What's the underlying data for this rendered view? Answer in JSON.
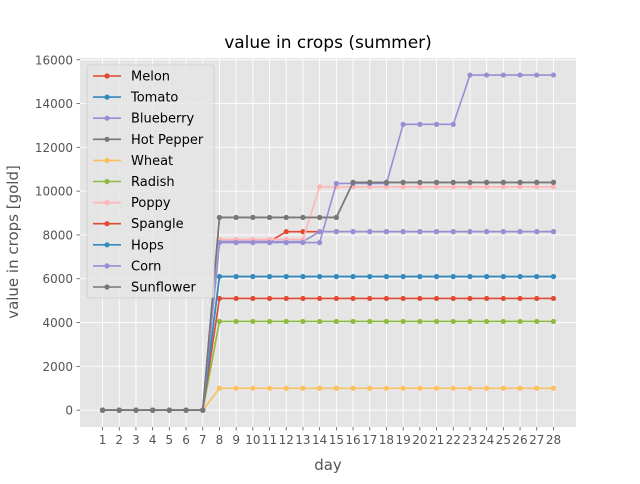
{
  "chart_data": {
    "type": "line",
    "title": "value in crops (summer)",
    "xlabel": "day",
    "ylabel": "value in crops [gold]",
    "x": [
      1,
      2,
      3,
      4,
      5,
      6,
      7,
      8,
      9,
      10,
      11,
      12,
      13,
      14,
      15,
      16,
      17,
      18,
      19,
      20,
      21,
      22,
      23,
      24,
      25,
      26,
      27,
      28
    ],
    "xlim": [
      -0.35,
      29.35
    ],
    "ylim": [
      -770,
      16080
    ],
    "yticks": [
      0,
      2000,
      4000,
      6000,
      8000,
      10000,
      12000,
      14000,
      16000
    ],
    "grid": true,
    "legend_position": "top-left",
    "series": [
      {
        "name": "Melon",
        "color": "#E24A33",
        "values": [
          0,
          0,
          0,
          0,
          0,
          0,
          0,
          7700,
          7700,
          7700,
          7700,
          8150,
          8150,
          8150,
          8150,
          8150,
          8150,
          8150,
          8150,
          8150,
          8150,
          8150,
          8150,
          8150,
          8150,
          8150,
          8150,
          8150
        ]
      },
      {
        "name": "Tomato",
        "color": "#348ABD",
        "values": [
          0,
          0,
          0,
          0,
          0,
          0,
          0,
          6100,
          6100,
          6100,
          6100,
          6100,
          6100,
          6100,
          6100,
          6100,
          6100,
          6100,
          6100,
          6100,
          6100,
          6100,
          6100,
          6100,
          6100,
          6100,
          6100,
          6100
        ]
      },
      {
        "name": "Blueberry",
        "color": "#988ED5",
        "values": [
          0,
          0,
          0,
          0,
          0,
          0,
          0,
          7700,
          7700,
          7700,
          7700,
          7700,
          7700,
          8150,
          8150,
          8150,
          8150,
          8150,
          8150,
          8150,
          8150,
          8150,
          8150,
          8150,
          8150,
          8150,
          8150,
          8150
        ]
      },
      {
        "name": "Hot Pepper",
        "color": "#777777",
        "values": [
          0,
          0,
          0,
          0,
          0,
          0,
          0,
          8800,
          8800,
          8800,
          8800,
          8800,
          8800,
          8800,
          8800,
          10400,
          10400,
          10400,
          10400,
          10400,
          10400,
          10400,
          10400,
          10400,
          10400,
          10400,
          10400,
          10400
        ]
      },
      {
        "name": "Wheat",
        "color": "#FBC15E",
        "values": [
          0,
          0,
          0,
          0,
          0,
          0,
          0,
          1000,
          1000,
          1000,
          1000,
          1000,
          1000,
          1000,
          1000,
          1000,
          1000,
          1000,
          1000,
          1000,
          1000,
          1000,
          1000,
          1000,
          1000,
          1000,
          1000,
          1000
        ]
      },
      {
        "name": "Radish",
        "color": "#8EBA42",
        "values": [
          0,
          0,
          0,
          0,
          0,
          0,
          0,
          4050,
          4050,
          4050,
          4050,
          4050,
          4050,
          4050,
          4050,
          4050,
          4050,
          4050,
          4050,
          4050,
          4050,
          4050,
          4050,
          4050,
          4050,
          4050,
          4050,
          4050
        ]
      },
      {
        "name": "Poppy",
        "color": "#FFB5B8",
        "values": [
          0,
          0,
          0,
          0,
          0,
          0,
          0,
          7800,
          7800,
          7800,
          7800,
          7800,
          7800,
          10200,
          10200,
          10200,
          10200,
          10200,
          10200,
          10200,
          10200,
          10200,
          10200,
          10200,
          10200,
          10200,
          10200,
          10200
        ]
      },
      {
        "name": "Spangle",
        "color": "#E24A33",
        "values": [
          0,
          0,
          0,
          0,
          0,
          0,
          0,
          5100,
          5100,
          5100,
          5100,
          5100,
          5100,
          5100,
          5100,
          5100,
          5100,
          5100,
          5100,
          5100,
          5100,
          5100,
          5100,
          5100,
          5100,
          5100,
          5100,
          5100
        ]
      },
      {
        "name": "Hops",
        "color": "#348ABD",
        "values": [
          0,
          0,
          0,
          0,
          0,
          0,
          0,
          6100,
          6100,
          6100,
          6100,
          6100,
          6100,
          6100,
          6100,
          6100,
          6100,
          6100,
          6100,
          6100,
          6100,
          6100,
          6100,
          6100,
          6100,
          6100,
          6100,
          6100
        ]
      },
      {
        "name": "Corn",
        "color": "#988ED5",
        "values": [
          0,
          0,
          0,
          0,
          0,
          0,
          0,
          7650,
          7650,
          7650,
          7650,
          7650,
          7650,
          7650,
          10350,
          10350,
          10350,
          10350,
          13050,
          13050,
          13050,
          13050,
          15300,
          15300,
          15300,
          15300,
          15300,
          15300
        ]
      },
      {
        "name": "Sunflower",
        "color": "#777777",
        "values": [
          0,
          0,
          0,
          0,
          0,
          0,
          0,
          8800,
          8800,
          8800,
          8800,
          8800,
          8800,
          8800,
          8800,
          10400,
          10400,
          10400,
          10400,
          10400,
          10400,
          10400,
          10400,
          10400,
          10400,
          10400,
          10400,
          10400
        ]
      }
    ]
  }
}
